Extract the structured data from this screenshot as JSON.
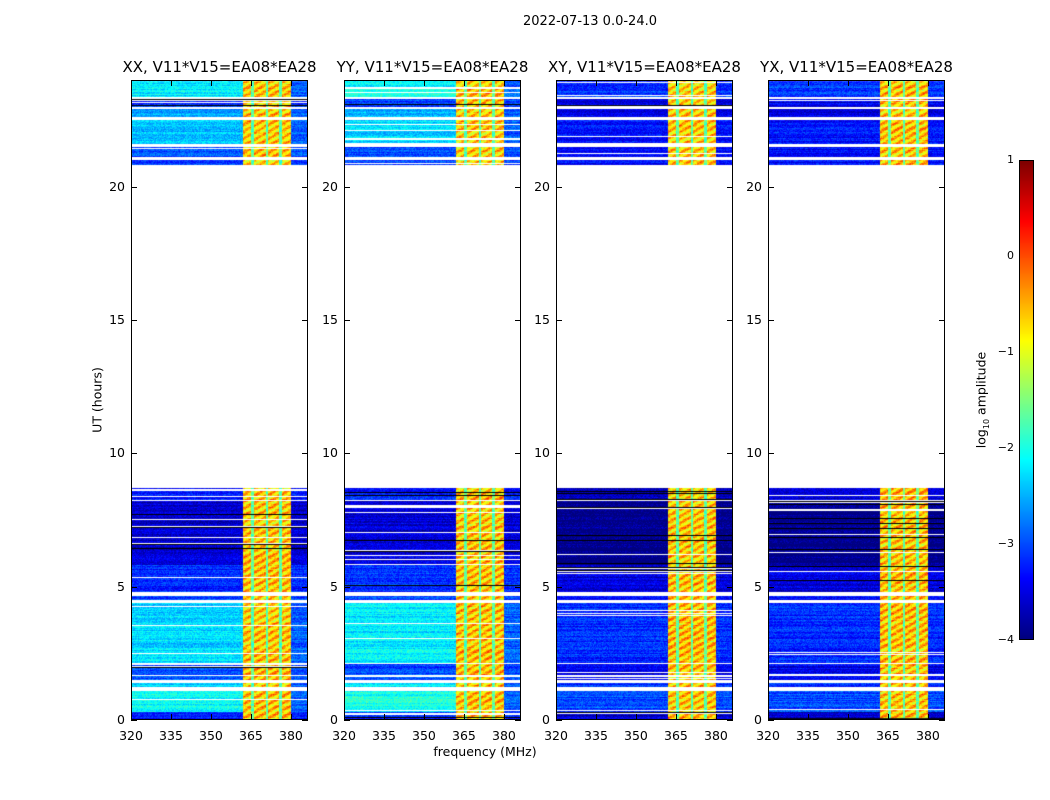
{
  "suptitle": "2022-07-13 0.0-24.0",
  "chart_data": {
    "type": "heatmap",
    "xlabel": "frequency (MHz)",
    "ylabel": "UT (hours)",
    "xlim": [
      320,
      386.4
    ],
    "ylim": [
      0,
      24
    ],
    "xticks": [
      "320",
      "335",
      "350",
      "365",
      "380"
    ],
    "xtick_values": [
      320,
      335,
      350,
      365,
      380
    ],
    "yticks": [
      "0",
      "5",
      "10",
      "15",
      "20"
    ],
    "ytick_values": [
      0,
      5,
      10,
      15,
      20
    ],
    "colorbar": {
      "label_main": "log",
      "label_sub": "10",
      "label_rest": " amplitude",
      "range": [
        -4,
        1
      ],
      "ticks": [
        "1",
        "0",
        "−1",
        "−2",
        "−3",
        "−4"
      ],
      "tick_values": [
        1,
        0,
        -1,
        -2,
        -3,
        -4
      ],
      "colormap": "jet"
    },
    "panels": [
      {
        "title": "XX, V11*V15=EA08*EA28",
        "baseline_offset": 0.0
      },
      {
        "title": "YY, V11*V15=EA08*EA28",
        "baseline_offset": 0.1
      },
      {
        "title": "XY, V11*V15=EA08*EA28",
        "baseline_offset": -0.9
      },
      {
        "title": "YX, V11*V15=EA08*EA28",
        "baseline_offset": -0.9
      }
    ],
    "rfi_band_mhz": [
      362,
      380
    ],
    "rfi_level": -0.6,
    "rfi_gaps_mhz": [
      365.5,
      371,
      376
    ],
    "segments_hours": [
      [
        0.0,
        0.3,
        -3.3
      ],
      [
        0.3,
        1.1,
        -2.1
      ],
      [
        1.25,
        1.4,
        -2.3
      ],
      [
        1.5,
        1.65,
        -3.0
      ],
      [
        1.7,
        2.1,
        -3.1
      ],
      [
        2.15,
        4.4,
        -2.3
      ],
      [
        4.5,
        4.65,
        -3.0
      ],
      [
        4.8,
        5.8,
        -3.2
      ],
      [
        5.8,
        8.2,
        -3.6
      ],
      [
        8.25,
        8.7,
        -3.3
      ],
      [
        20.8,
        21.0,
        -3.0
      ],
      [
        21.1,
        21.5,
        -3.0
      ],
      [
        21.6,
        22.5,
        -2.4
      ],
      [
        22.6,
        22.9,
        -2.6
      ],
      [
        23.0,
        23.3,
        -3.1
      ],
      [
        23.35,
        24.0,
        -2.2
      ]
    ]
  }
}
